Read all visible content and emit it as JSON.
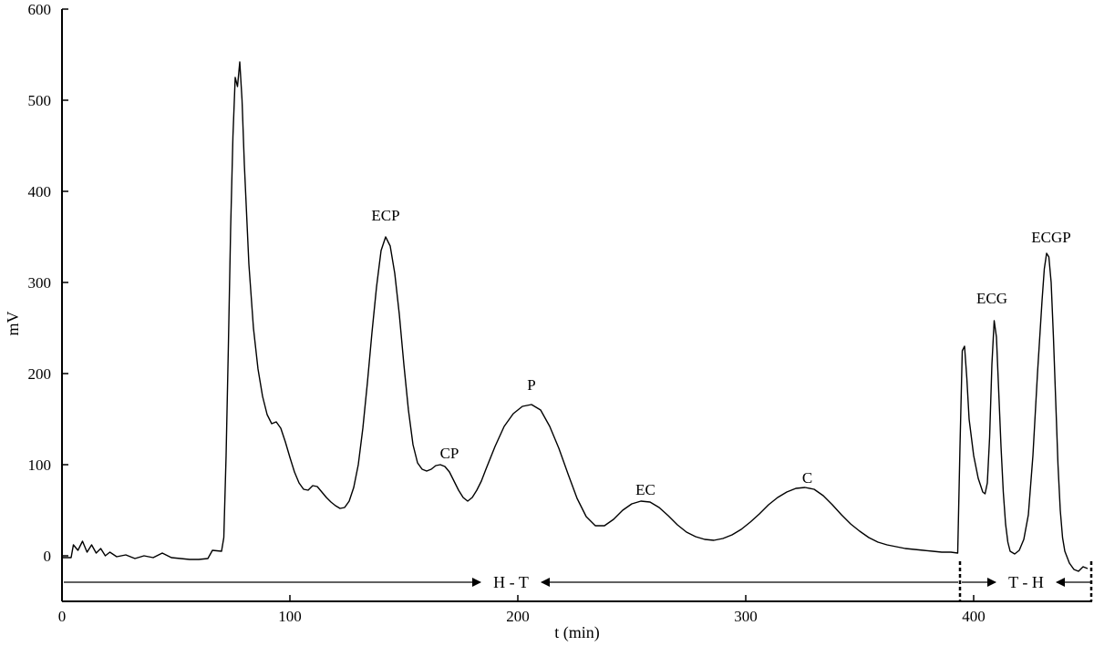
{
  "chart_data": {
    "type": "line",
    "xlabel": "t (min)",
    "ylabel": "mV",
    "xlim": [
      0,
      452
    ],
    "ylim": [
      -50,
      600
    ],
    "x_ticks": [
      0,
      100,
      200,
      300,
      400
    ],
    "y_ticks": [
      0,
      100,
      200,
      300,
      400,
      500,
      600
    ],
    "grid": false,
    "series": [
      {
        "color": "#000000",
        "points": [
          [
            0,
            -2
          ],
          [
            4,
            -2
          ],
          [
            5,
            12
          ],
          [
            7,
            6
          ],
          [
            9,
            16
          ],
          [
            11,
            4
          ],
          [
            13,
            12
          ],
          [
            15,
            3
          ],
          [
            17,
            8
          ],
          [
            19,
            0
          ],
          [
            21,
            4
          ],
          [
            24,
            -1
          ],
          [
            28,
            1
          ],
          [
            32,
            -3
          ],
          [
            36,
            0
          ],
          [
            40,
            -2
          ],
          [
            44,
            3
          ],
          [
            48,
            -2
          ],
          [
            52,
            -3
          ],
          [
            56,
            -4
          ],
          [
            60,
            -4
          ],
          [
            64,
            -3
          ],
          [
            66,
            6
          ],
          [
            70,
            5
          ],
          [
            71,
            20
          ],
          [
            72,
            110
          ],
          [
            73,
            230
          ],
          [
            74,
            360
          ],
          [
            75,
            460
          ],
          [
            76,
            525
          ],
          [
            77,
            515
          ],
          [
            78,
            542
          ],
          [
            79,
            500
          ],
          [
            80,
            430
          ],
          [
            82,
            320
          ],
          [
            84,
            250
          ],
          [
            86,
            205
          ],
          [
            88,
            175
          ],
          [
            90,
            155
          ],
          [
            92,
            145
          ],
          [
            94,
            147
          ],
          [
            96,
            140
          ],
          [
            98,
            125
          ],
          [
            100,
            108
          ],
          [
            102,
            92
          ],
          [
            104,
            80
          ],
          [
            106,
            73
          ],
          [
            108,
            72
          ],
          [
            110,
            77
          ],
          [
            112,
            76
          ],
          [
            114,
            70
          ],
          [
            116,
            64
          ],
          [
            118,
            59
          ],
          [
            120,
            55
          ],
          [
            122,
            52
          ],
          [
            124,
            53
          ],
          [
            126,
            60
          ],
          [
            128,
            75
          ],
          [
            130,
            100
          ],
          [
            132,
            140
          ],
          [
            134,
            190
          ],
          [
            136,
            245
          ],
          [
            138,
            295
          ],
          [
            140,
            335
          ],
          [
            142,
            350
          ],
          [
            144,
            340
          ],
          [
            146,
            310
          ],
          [
            148,
            265
          ],
          [
            150,
            210
          ],
          [
            152,
            160
          ],
          [
            154,
            122
          ],
          [
            156,
            102
          ],
          [
            158,
            95
          ],
          [
            160,
            93
          ],
          [
            162,
            95
          ],
          [
            164,
            99
          ],
          [
            166,
            100
          ],
          [
            168,
            98
          ],
          [
            170,
            92
          ],
          [
            172,
            82
          ],
          [
            174,
            72
          ],
          [
            176,
            64
          ],
          [
            178,
            60
          ],
          [
            180,
            64
          ],
          [
            182,
            72
          ],
          [
            184,
            82
          ],
          [
            186,
            95
          ],
          [
            190,
            120
          ],
          [
            194,
            142
          ],
          [
            198,
            156
          ],
          [
            202,
            164
          ],
          [
            206,
            166
          ],
          [
            210,
            160
          ],
          [
            214,
            142
          ],
          [
            218,
            118
          ],
          [
            222,
            90
          ],
          [
            226,
            63
          ],
          [
            230,
            43
          ],
          [
            234,
            33
          ],
          [
            238,
            33
          ],
          [
            242,
            40
          ],
          [
            246,
            50
          ],
          [
            250,
            57
          ],
          [
            254,
            60
          ],
          [
            258,
            59
          ],
          [
            262,
            53
          ],
          [
            266,
            44
          ],
          [
            270,
            34
          ],
          [
            274,
            26
          ],
          [
            278,
            21
          ],
          [
            282,
            18
          ],
          [
            286,
            17
          ],
          [
            290,
            19
          ],
          [
            294,
            23
          ],
          [
            298,
            29
          ],
          [
            302,
            37
          ],
          [
            306,
            46
          ],
          [
            310,
            56
          ],
          [
            314,
            64
          ],
          [
            318,
            70
          ],
          [
            322,
            74
          ],
          [
            326,
            75
          ],
          [
            330,
            73
          ],
          [
            334,
            66
          ],
          [
            338,
            56
          ],
          [
            342,
            45
          ],
          [
            346,
            35
          ],
          [
            350,
            27
          ],
          [
            354,
            20
          ],
          [
            358,
            15
          ],
          [
            362,
            12
          ],
          [
            366,
            10
          ],
          [
            370,
            8
          ],
          [
            374,
            7
          ],
          [
            378,
            6
          ],
          [
            382,
            5
          ],
          [
            386,
            4
          ],
          [
            390,
            4
          ],
          [
            393,
            3
          ],
          [
            394,
            120
          ],
          [
            395,
            225
          ],
          [
            396,
            230
          ],
          [
            397,
            195
          ],
          [
            398,
            150
          ],
          [
            400,
            110
          ],
          [
            402,
            85
          ],
          [
            404,
            70
          ],
          [
            405,
            68
          ],
          [
            406,
            80
          ],
          [
            407,
            130
          ],
          [
            408,
            210
          ],
          [
            409,
            258
          ],
          [
            410,
            240
          ],
          [
            411,
            180
          ],
          [
            412,
            120
          ],
          [
            413,
            70
          ],
          [
            414,
            35
          ],
          [
            415,
            15
          ],
          [
            416,
            5
          ],
          [
            418,
            2
          ],
          [
            420,
            6
          ],
          [
            422,
            18
          ],
          [
            424,
            45
          ],
          [
            426,
            110
          ],
          [
            428,
            200
          ],
          [
            430,
            280
          ],
          [
            431,
            315
          ],
          [
            432,
            332
          ],
          [
            433,
            328
          ],
          [
            434,
            300
          ],
          [
            435,
            240
          ],
          [
            436,
            170
          ],
          [
            437,
            100
          ],
          [
            438,
            50
          ],
          [
            439,
            20
          ],
          [
            440,
            5
          ],
          [
            442,
            -8
          ],
          [
            444,
            -15
          ],
          [
            446,
            -17
          ],
          [
            448,
            -12
          ],
          [
            450,
            -14
          ]
        ]
      }
    ],
    "annotations": [
      {
        "text": "ECP",
        "x": 142,
        "y": 368
      },
      {
        "text": "CP",
        "x": 170,
        "y": 107
      },
      {
        "text": "P",
        "x": 206,
        "y": 182
      },
      {
        "text": "EC",
        "x": 256,
        "y": 67
      },
      {
        "text": "C",
        "x": 327,
        "y": 80
      },
      {
        "text": "ECG",
        "x": 408,
        "y": 277
      },
      {
        "text": "ECGP",
        "x": 434,
        "y": 344
      }
    ],
    "regions": [
      {
        "label": "H - T",
        "from": 0,
        "to": 394,
        "y": -29
      },
      {
        "label": "T - H",
        "from": 394,
        "to": 452,
        "y": -29
      }
    ],
    "region_dividers": [
      394,
      452
    ]
  }
}
